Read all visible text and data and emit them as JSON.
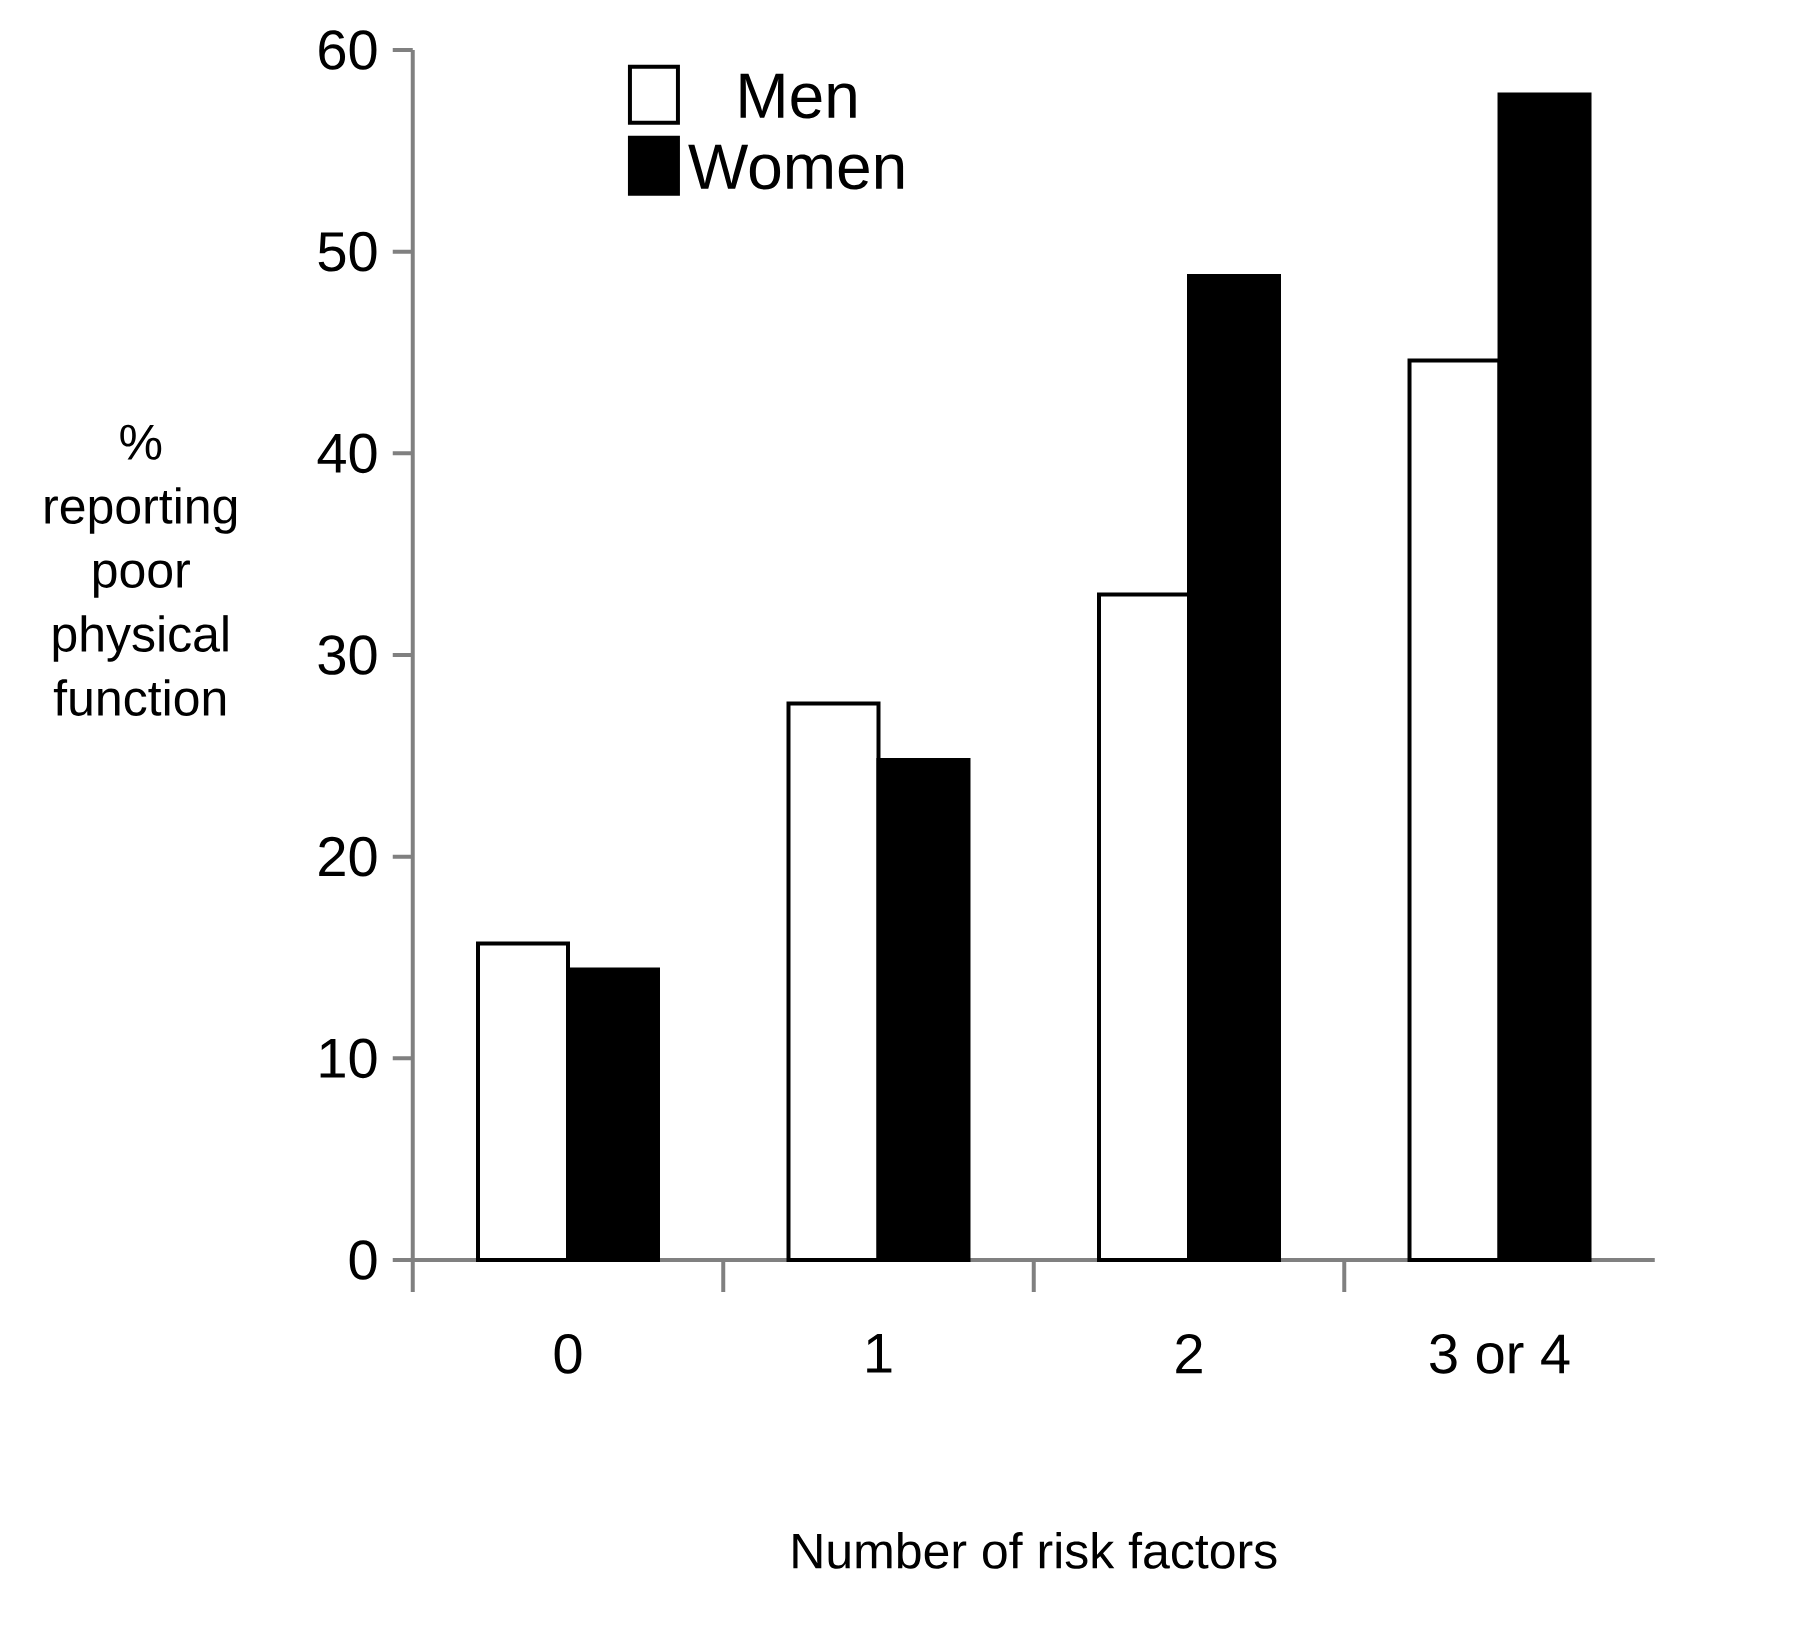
{
  "chart_data": {
    "type": "bar",
    "xlabel": "Number of risk factors",
    "ylabel": "% reporting poor physical function",
    "categories": [
      "0",
      "1",
      "2",
      "3 or 4"
    ],
    "series": [
      {
        "name": "Men",
        "color": "#ffffff",
        "values": [
          15.7,
          27.6,
          33.0,
          44.6
        ]
      },
      {
        "name": "Women",
        "color": "#000000",
        "values": [
          14.4,
          24.8,
          48.8,
          57.8
        ]
      }
    ],
    "ylim": [
      0,
      60
    ],
    "yticks": [
      0,
      10,
      20,
      30,
      40,
      50,
      60
    ],
    "legend": "top left"
  }
}
